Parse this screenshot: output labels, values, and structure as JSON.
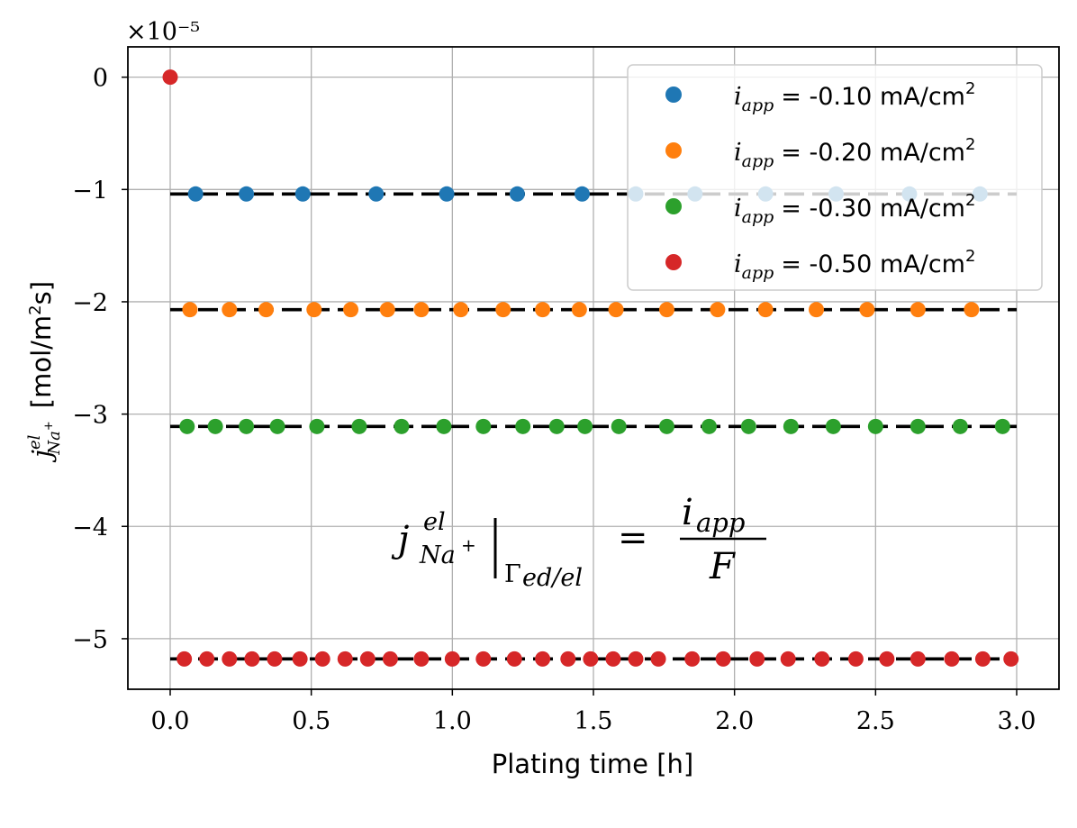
{
  "chart_data": {
    "type": "scatter",
    "title": "",
    "xlabel": "Plating time [h]",
    "ylabel": "mol/m²s",
    "ylabel_symbol": "j^el_{Na+}",
    "xlim": [
      -0.15,
      3.15
    ],
    "ylim": [
      -5.45,
      0.27
    ],
    "y_multiplier": "×10⁻⁵",
    "x_ticks": [
      0.0,
      0.5,
      1.0,
      1.5,
      2.0,
      2.5,
      3.0
    ],
    "x_tick_labels": [
      "0.0",
      "0.5",
      "1.0",
      "1.5",
      "2.0",
      "2.5",
      "3.0"
    ],
    "y_ticks": [
      0,
      -1,
      -2,
      -3,
      -4,
      -5
    ],
    "y_tick_labels": [
      "0",
      "−1",
      "−2",
      "−3",
      "−4",
      "−5"
    ],
    "grid": true,
    "legend_position": "top-right",
    "series": [
      {
        "name": "i_app = -0.10 mA/cm2",
        "legend_value": "= -0.10 mA/cm",
        "color": "#1f77b4",
        "x": [
          0.09,
          0.27,
          0.47,
          0.73,
          0.98,
          1.23,
          1.46,
          1.65,
          1.86,
          2.11,
          2.36,
          2.62,
          2.87
        ],
        "y": [
          -1.04,
          -1.04,
          -1.04,
          -1.04,
          -1.04,
          -1.04,
          -1.04,
          -1.04,
          -1.04,
          -1.04,
          -1.04,
          -1.04,
          -1.04
        ],
        "analytic": -1.04
      },
      {
        "name": "i_app = -0.20 mA/cm2",
        "legend_value": "= -0.20 mA/cm",
        "color": "#ff7f0e",
        "x": [
          0.07,
          0.21,
          0.34,
          0.51,
          0.64,
          0.77,
          0.89,
          1.03,
          1.18,
          1.32,
          1.45,
          1.58,
          1.76,
          1.94,
          2.11,
          2.29,
          2.47,
          2.65,
          2.84
        ],
        "y": [
          -2.07,
          -2.07,
          -2.07,
          -2.07,
          -2.07,
          -2.07,
          -2.07,
          -2.07,
          -2.07,
          -2.07,
          -2.07,
          -2.07,
          -2.07,
          -2.07,
          -2.07,
          -2.07,
          -2.07,
          -2.07,
          -2.07
        ],
        "analytic": -2.07
      },
      {
        "name": "i_app = -0.30 mA/cm2",
        "legend_value": "= -0.30 mA/cm",
        "color": "#2ca02c",
        "x": [
          0.06,
          0.16,
          0.27,
          0.38,
          0.52,
          0.67,
          0.82,
          0.97,
          1.11,
          1.25,
          1.37,
          1.47,
          1.59,
          1.76,
          1.91,
          2.05,
          2.2,
          2.35,
          2.5,
          2.65,
          2.8,
          2.95
        ],
        "y": [
          -3.11,
          -3.11,
          -3.11,
          -3.11,
          -3.11,
          -3.11,
          -3.11,
          -3.11,
          -3.11,
          -3.11,
          -3.11,
          -3.11,
          -3.11,
          -3.11,
          -3.11,
          -3.11,
          -3.11,
          -3.11,
          -3.11,
          -3.11,
          -3.11,
          -3.11
        ],
        "analytic": -3.11
      },
      {
        "name": "i_app = -0.50 mA/cm2",
        "legend_value": "= -0.50 mA/cm",
        "color": "#d62728",
        "x": [
          0.0,
          0.05,
          0.13,
          0.21,
          0.29,
          0.37,
          0.46,
          0.54,
          0.62,
          0.7,
          0.78,
          0.89,
          1.0,
          1.11,
          1.22,
          1.32,
          1.41,
          1.49,
          1.57,
          1.65,
          1.73,
          1.85,
          1.96,
          2.08,
          2.19,
          2.31,
          2.43,
          2.54,
          2.65,
          2.77,
          2.88,
          2.98
        ],
        "y": [
          0.0,
          -5.18,
          -5.18,
          -5.18,
          -5.18,
          -5.18,
          -5.18,
          -5.18,
          -5.18,
          -5.18,
          -5.18,
          -5.18,
          -5.18,
          -5.18,
          -5.18,
          -5.18,
          -5.18,
          -5.18,
          -5.18,
          -5.18,
          -5.18,
          -5.18,
          -5.18,
          -5.18,
          -5.18,
          -5.18,
          -5.18,
          -5.18,
          -5.18,
          -5.18,
          -5.18,
          -5.18
        ],
        "analytic": -5.18
      }
    ],
    "equation": {
      "lhs_main": "j",
      "lhs_sup": "el",
      "lhs_sub": "Na",
      "lhs_sub_sup": "+",
      "bar_sub": "Γ",
      "bar_sub_rest": "ed/el",
      "equals": "=",
      "numerator": "i",
      "numerator_sub": "app",
      "denominator": "F"
    }
  },
  "legend_labels": {
    "symbol_main": "i",
    "symbol_sub": "app",
    "unit_sup": "2"
  },
  "axis_labels": {
    "ylabel_sym_main": "j",
    "ylabel_sym_sup": "el",
    "ylabel_sym_sub": "Na",
    "ylabel_sym_subsup": "+",
    "ylabel_sup": "2",
    "ylabel_unit_pre": "[mol/m",
    "ylabel_unit_post": "s]"
  }
}
